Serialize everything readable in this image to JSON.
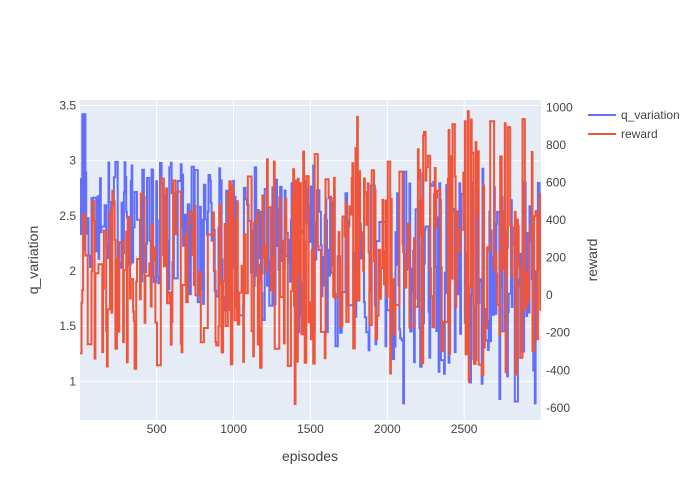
{
  "chart_data": {
    "type": "line",
    "xlabel": "episodes",
    "ylabel": "q_variation",
    "y2label": "reward",
    "xlim": [
      1,
      3000
    ],
    "ylim": [
      0.65,
      3.55
    ],
    "y2lim": [
      -665,
      1040
    ],
    "x_ticks": [
      500,
      1000,
      1500,
      2000,
      2500
    ],
    "y_ticks": [
      1,
      1.5,
      2,
      2.5,
      3,
      3.5
    ],
    "y2_ticks": [
      -600,
      -400,
      -200,
      0,
      200,
      400,
      600,
      800,
      1000
    ],
    "grid": true,
    "legend_position": "top-right",
    "series": [
      {
        "name": "q_variation",
        "axis": "left",
        "color": "#636efa",
        "points_count": 600,
        "value_range": [
          0.8,
          3.42
        ],
        "seed": 17
      },
      {
        "name": "reward",
        "axis": "right",
        "color": "#ef553b",
        "points_count": 600,
        "value_range": [
          -580,
          980
        ],
        "seed": 42
      }
    ]
  }
}
